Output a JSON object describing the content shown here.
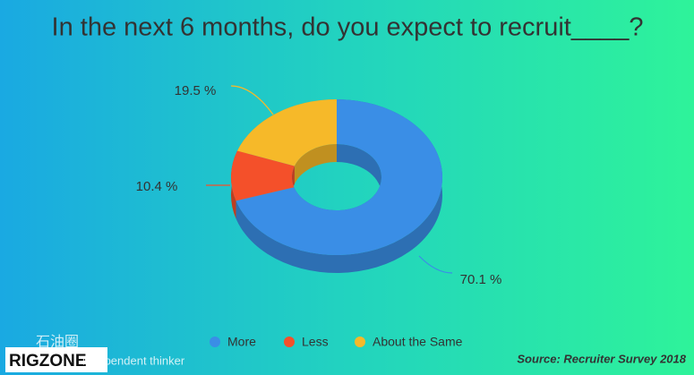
{
  "chart_data": {
    "type": "pie",
    "title": "In the next 6 months, do you expect to recruit____?",
    "categories": [
      "More",
      "Less",
      "About the Same"
    ],
    "values": [
      70.1,
      10.4,
      19.5
    ],
    "value_labels": [
      "70.1 %",
      "10.4 %",
      "19.5 %"
    ],
    "colors": [
      "#3a8ee6",
      "#f4502a",
      "#f6b929"
    ],
    "donut": true,
    "source": "Source: Recruiter Survey 2018"
  },
  "watermark": {
    "logo": "RIGZONE",
    "brand": "石油圈",
    "tagline": "independent thinker"
  }
}
